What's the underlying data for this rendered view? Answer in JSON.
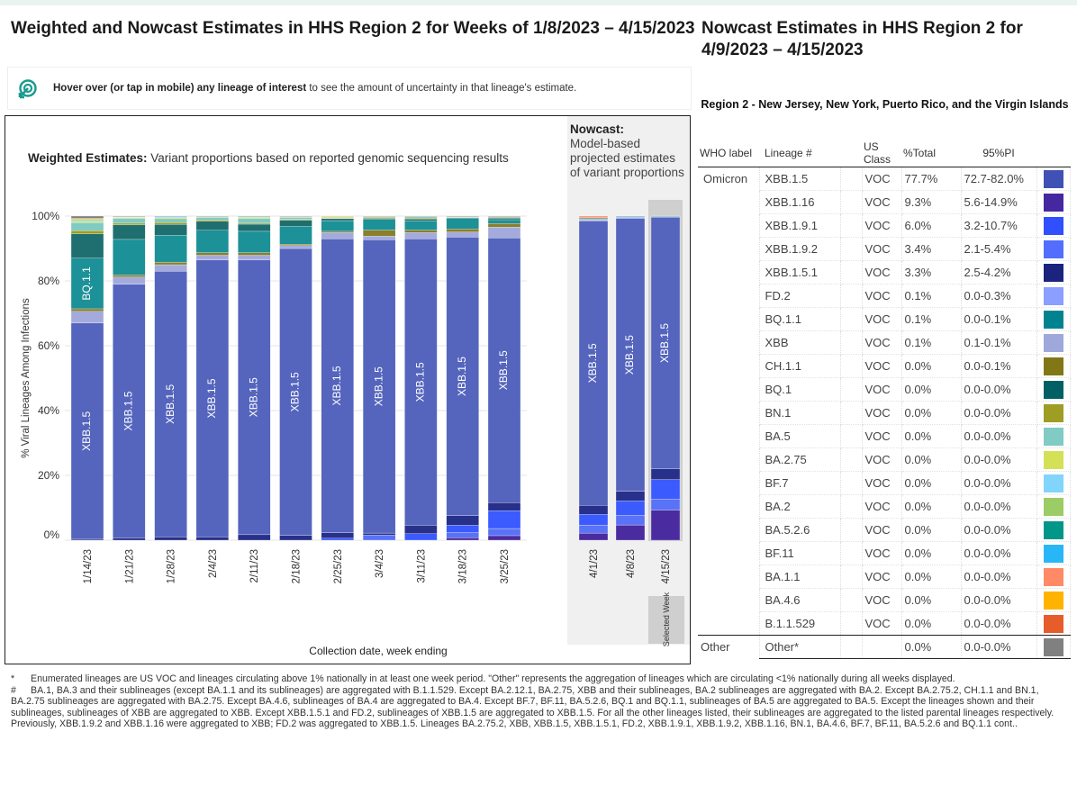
{
  "left_title": "Weighted and Nowcast Estimates in HHS Region 2 for Weeks of 1/8/2023 – 4/15/2023",
  "hint": {
    "icon": "cursor-target-icon",
    "bold": "Hover over (or tap in mobile) any lineage of interest",
    "rest": " to see the amount of uncertainty in that lineage's estimate."
  },
  "weighted_title": {
    "bold": "Weighted Estimates:",
    "rest": " Variant proportions based on reported genomic sequencing results"
  },
  "nowcast_title": {
    "bold": "Nowcast:",
    "rest": "Model-based projected estimates of variant proportions"
  },
  "selected_week_label": "Selected Week",
  "chart_data": {
    "type": "bar",
    "stacked": true,
    "categories": [
      "1/14/23",
      "1/21/23",
      "1/28/23",
      "2/4/23",
      "2/11/23",
      "2/18/23",
      "2/25/23",
      "3/4/23",
      "3/11/23",
      "3/18/23",
      "3/25/23",
      "4/1/23",
      "4/8/23",
      "4/15/23"
    ],
    "nowcast_categories": [
      "4/1/23",
      "4/8/23",
      "4/15/23"
    ],
    "selected": "4/15/23",
    "ylabel": "% Viral Lineages Among Infections",
    "xlabel": "Collection date, week ending",
    "ylim": [
      0,
      100
    ],
    "yticks": [
      "0%",
      "20%",
      "40%",
      "60%",
      "80%",
      "100%"
    ],
    "grid": true,
    "bar_labels": [
      "XBB.1.5",
      "BQ.1.1"
    ],
    "series": [
      {
        "name": "XBB.1.16",
        "color": "#4b2ba0",
        "values": [
          0,
          0,
          0,
          0,
          0,
          0,
          0,
          0,
          0,
          0.8,
          1.4,
          2.2,
          4.7,
          9.3
        ]
      },
      {
        "name": "XBB.1.9.2",
        "color": "#5a72f5",
        "values": [
          0,
          0,
          0,
          0,
          0,
          0,
          0,
          1.6,
          0,
          1.6,
          2.2,
          2.5,
          3.0,
          3.4
        ]
      },
      {
        "name": "XBB.1.9.1",
        "color": "#3b5bff",
        "values": [
          0,
          0,
          0,
          0,
          0,
          0,
          0.6,
          0,
          2.0,
          2.2,
          5.5,
          3.3,
          4.4,
          6.0
        ]
      },
      {
        "name": "XBB.1.5.1",
        "color": "#27308a",
        "values": [
          0.3,
          0.7,
          1.0,
          1.0,
          1.7,
          1.5,
          1.7,
          0.6,
          2.6,
          3.0,
          2.5,
          2.8,
          3.0,
          3.3
        ]
      },
      {
        "name": "XBB.1.5",
        "color": "#5565bd",
        "values": [
          66.7,
          78.3,
          82.0,
          85.5,
          84.8,
          88.5,
          90.7,
          90.5,
          88.4,
          85.9,
          81.7,
          88.0,
          84.2,
          77.7
        ]
      },
      {
        "name": "FD.2",
        "color": "#8c9eff",
        "values": [
          0,
          0,
          0,
          0,
          0,
          0,
          0,
          0,
          0,
          0,
          0,
          0.2,
          0.2,
          0.1
        ]
      },
      {
        "name": "XBB",
        "color": "#a4abdc",
        "values": [
          3.6,
          2.2,
          2.0,
          1.4,
          1.4,
          0.9,
          1.9,
          1.1,
          1.9,
          1.6,
          3.3,
          0.3,
          0.3,
          0.1
        ]
      },
      {
        "name": "CH.1.1",
        "color": "#8a7f2a",
        "values": [
          0.8,
          0.6,
          0.8,
          0.8,
          0.8,
          0.4,
          0.4,
          1.9,
          0.8,
          0.9,
          1.1,
          0.2,
          0,
          0
        ]
      },
      {
        "name": "BQ.1.1",
        "color": "#1c9197",
        "values": [
          15.6,
          11.0,
          8.3,
          6.9,
          6.6,
          5.5,
          3.3,
          3.3,
          2.8,
          3.3,
          1.2,
          0.3,
          0.2,
          0.1
        ]
      },
      {
        "name": "BQ.1",
        "color": "#1f6f70",
        "values": [
          7.5,
          4.5,
          3.3,
          2.8,
          2.2,
          1.9,
          0.6,
          0.3,
          0.6,
          0.2,
          0.5,
          0,
          0,
          0
        ]
      },
      {
        "name": "BN.1",
        "color": "#9e9d24",
        "values": [
          1.0,
          0.5,
          0.6,
          0.4,
          0.3,
          0.3,
          0.2,
          0.3,
          0.3,
          0.2,
          0.2,
          0,
          0,
          0
        ]
      },
      {
        "name": "BA.5",
        "color": "#80cbc4",
        "values": [
          2.5,
          1.5,
          1.2,
          0.8,
          1.5,
          0.6,
          0.2,
          0.2,
          0.4,
          0.1,
          0.2,
          0,
          0,
          0
        ]
      },
      {
        "name": "BA.2.75",
        "color": "#d4e157",
        "values": [
          0.5,
          0.2,
          0.3,
          0.2,
          0.3,
          0.2,
          0.3,
          0.1,
          0.1,
          0,
          0,
          0,
          0,
          0
        ]
      },
      {
        "name": "BF.7",
        "color": "#81d4fa",
        "values": [
          0.5,
          0.2,
          0.3,
          0.1,
          0.2,
          0.1,
          0,
          0,
          0,
          0,
          0,
          0,
          0,
          0
        ]
      },
      {
        "name": "BA.2",
        "color": "#9ccc65",
        "values": [
          0,
          0,
          0,
          0,
          0,
          0,
          0,
          0,
          0,
          0,
          0,
          0,
          0,
          0
        ]
      },
      {
        "name": "BA.5.2.6",
        "color": "#009688",
        "values": [
          0,
          0,
          0,
          0,
          0,
          0,
          0,
          0,
          0,
          0,
          0,
          0,
          0,
          0
        ]
      },
      {
        "name": "BF.11",
        "color": "#29b6f6",
        "values": [
          0,
          0,
          0,
          0,
          0,
          0,
          0,
          0,
          0,
          0,
          0,
          0,
          0,
          0
        ]
      },
      {
        "name": "BA.1.1",
        "color": "#ff8a65",
        "values": [
          0,
          0,
          0,
          0,
          0,
          0,
          0,
          0,
          0,
          0,
          0,
          0.5,
          0,
          0
        ]
      },
      {
        "name": "BA.4.6",
        "color": "#ffb300",
        "values": [
          0.3,
          0.1,
          0,
          0,
          0,
          0,
          0.1,
          0,
          0,
          0,
          0,
          0,
          0,
          0
        ]
      },
      {
        "name": "B.1.1.529",
        "color": "#e65c2b",
        "values": [
          0,
          0,
          0,
          0,
          0,
          0,
          0,
          0,
          0,
          0,
          0,
          0,
          0,
          0
        ]
      },
      {
        "name": "Other",
        "color": "#808080",
        "values": [
          0.7,
          0.2,
          0.2,
          0.1,
          0.2,
          0.1,
          0,
          0.1,
          0.1,
          0.2,
          0.2,
          0,
          0,
          0
        ]
      }
    ]
  },
  "right_title": "Nowcast Estimates in HHS Region 2 for 4/9/2023 – 4/15/2023",
  "table": {
    "title": "Region 2 - New Jersey, New York, Puerto Rico, and the Virgin Islands",
    "headers": {
      "who": "WHO label",
      "lineage": "Lineage #",
      "class": "US Class",
      "total": "%Total",
      "pi": "95%PI"
    },
    "rows": [
      {
        "who": "Omicron",
        "lineage": "XBB.1.5",
        "cls": "VOC",
        "total": "77.7%",
        "pi": "72.7-82.0%",
        "color": "#3f51b5"
      },
      {
        "who": "",
        "lineage": "XBB.1.16",
        "cls": "VOC",
        "total": "9.3%",
        "pi": "5.6-14.9%",
        "color": "#4527a0"
      },
      {
        "who": "",
        "lineage": "XBB.1.9.1",
        "cls": "VOC",
        "total": "6.0%",
        "pi": "3.2-10.7%",
        "color": "#304ffe"
      },
      {
        "who": "",
        "lineage": "XBB.1.9.2",
        "cls": "VOC",
        "total": "3.4%",
        "pi": "2.1-5.4%",
        "color": "#536dfe"
      },
      {
        "who": "",
        "lineage": "XBB.1.5.1",
        "cls": "VOC",
        "total": "3.3%",
        "pi": "2.5-4.2%",
        "color": "#1a237e"
      },
      {
        "who": "",
        "lineage": "FD.2",
        "cls": "VOC",
        "total": "0.1%",
        "pi": "0.0-0.3%",
        "color": "#8c9eff"
      },
      {
        "who": "",
        "lineage": "BQ.1.1",
        "cls": "VOC",
        "total": "0.1%",
        "pi": "0.0-0.1%",
        "color": "#00838f"
      },
      {
        "who": "",
        "lineage": "XBB",
        "cls": "VOC",
        "total": "0.1%",
        "pi": "0.1-0.1%",
        "color": "#9fa8da"
      },
      {
        "who": "",
        "lineage": "CH.1.1",
        "cls": "VOC",
        "total": "0.0%",
        "pi": "0.0-0.1%",
        "color": "#827717"
      },
      {
        "who": "",
        "lineage": "BQ.1",
        "cls": "VOC",
        "total": "0.0%",
        "pi": "0.0-0.0%",
        "color": "#006064"
      },
      {
        "who": "",
        "lineage": "BN.1",
        "cls": "VOC",
        "total": "0.0%",
        "pi": "0.0-0.0%",
        "color": "#9e9d24"
      },
      {
        "who": "",
        "lineage": "BA.5",
        "cls": "VOC",
        "total": "0.0%",
        "pi": "0.0-0.0%",
        "color": "#80cbc4"
      },
      {
        "who": "",
        "lineage": "BA.2.75",
        "cls": "VOC",
        "total": "0.0%",
        "pi": "0.0-0.0%",
        "color": "#d4e157"
      },
      {
        "who": "",
        "lineage": "BF.7",
        "cls": "VOC",
        "total": "0.0%",
        "pi": "0.0-0.0%",
        "color": "#81d4fa"
      },
      {
        "who": "",
        "lineage": "BA.2",
        "cls": "VOC",
        "total": "0.0%",
        "pi": "0.0-0.0%",
        "color": "#9ccc65"
      },
      {
        "who": "",
        "lineage": "BA.5.2.6",
        "cls": "VOC",
        "total": "0.0%",
        "pi": "0.0-0.0%",
        "color": "#009688"
      },
      {
        "who": "",
        "lineage": "BF.11",
        "cls": "VOC",
        "total": "0.0%",
        "pi": "0.0-0.0%",
        "color": "#29b6f6"
      },
      {
        "who": "",
        "lineage": "BA.1.1",
        "cls": "VOC",
        "total": "0.0%",
        "pi": "0.0-0.0%",
        "color": "#ff8a65"
      },
      {
        "who": "",
        "lineage": "BA.4.6",
        "cls": "VOC",
        "total": "0.0%",
        "pi": "0.0-0.0%",
        "color": "#ffb300"
      },
      {
        "who": "",
        "lineage": "B.1.1.529",
        "cls": "VOC",
        "total": "0.0%",
        "pi": "0.0-0.0%",
        "color": "#e65c2b"
      },
      {
        "who": "Other",
        "lineage": "Other*",
        "cls": "",
        "total": "0.0%",
        "pi": "0.0-0.0%",
        "color": "#808080"
      }
    ]
  },
  "footnotes": [
    {
      "mark": "*",
      "text": "Enumerated lineages are US VOC and lineages circulating above 1% nationally in at least one week period. \"Other\" represents the aggregation of lineages which are circulating <1% nationally during all weeks displayed."
    },
    {
      "mark": "#",
      "text": "BA.1, BA.3 and their sublineages (except BA.1.1 and its sublineages) are aggregated with B.1.1.529. Except BA.2.12.1, BA.2.75, XBB and their sublineages, BA.2 sublineages are aggregated with BA.2. Except BA.2.75.2, CH.1.1 and BN.1, BA.2.75 sublineages are aggregated with BA.2.75. Except BA.4.6, sublineages of BA.4 are aggregated to BA.4. Except BF.7, BF.11, BA.5.2.6, BQ.1 and BQ.1.1, sublineages of BA.5 are aggregated to BA.5. Except the lineages shown and their sublineages, sublineages of XBB are aggregated to XBB. Except XBB.1.5.1 and FD.2, sublineages of XBB.1.5 are aggregated to XBB.1.5. For all the other lineages listed, their sublineages are aggregated to the listed parental lineages respectively. Previously, XBB.1.9.2 and XBB.1.16 were aggregated to XBB; FD.2 was aggregated to XBB.1.5. Lineages BA.2.75.2, XBB, XBB.1.5, XBB.1.5.1, FD.2, XBB.1.9.1, XBB.1.9.2, XBB.1.16, BN.1, BA.4.6, BF.7, BF.11, BA.5.2.6 and BQ.1.1 cont.."
    }
  ]
}
